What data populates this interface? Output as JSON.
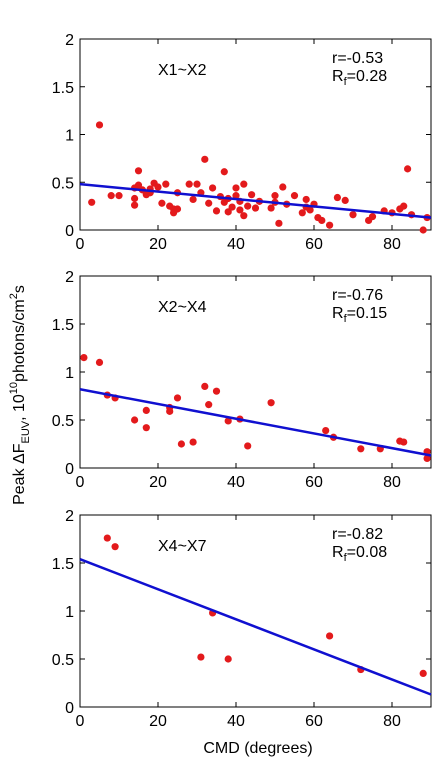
{
  "figure": {
    "ylabel_main": "Peak ",
    "ylabel_delta": "ΔF",
    "ylabel_sub": "EUV",
    "ylabel_mid": ", 10",
    "ylabel_sup1": "10",
    "ylabel_unit": "photons/cm",
    "ylabel_sup2": "2",
    "ylabel_end": "s",
    "xlabel": "CMD (degrees)"
  },
  "colors": {
    "points": "#e31a1c",
    "fit": "#1010d0",
    "axis": "#000000"
  },
  "chart_data": [
    {
      "type": "scatter",
      "label": "X1~X2",
      "r_text": "r=-0.53",
      "rf_prefix": "R",
      "rf_sub": "f",
      "rf_value": "=0.28",
      "xlim": [
        0,
        90
      ],
      "ylim": [
        0,
        2
      ],
      "xticks": [
        0,
        20,
        40,
        60,
        80
      ],
      "yticks": [
        0,
        0.5,
        1,
        1.5,
        2
      ],
      "ytick_labels": [
        "0",
        "0.5",
        "1",
        "1.5",
        "2"
      ],
      "xtick_labels": [
        "0",
        "20",
        "40",
        "60",
        "80"
      ],
      "show_xtick_labels": true,
      "fit": {
        "x": [
          0,
          90
        ],
        "y": [
          0.48,
          0.13
        ]
      },
      "points": [
        [
          3,
          0.29
        ],
        [
          5,
          1.1
        ],
        [
          8,
          0.36
        ],
        [
          10,
          0.36
        ],
        [
          14,
          0.33
        ],
        [
          14,
          0.26
        ],
        [
          14,
          0.44
        ],
        [
          15,
          0.47
        ],
        [
          15,
          0.62
        ],
        [
          16,
          0.42
        ],
        [
          17,
          0.37
        ],
        [
          18,
          0.39
        ],
        [
          18,
          0.43
        ],
        [
          19,
          0.49
        ],
        [
          20,
          0.45
        ],
        [
          21,
          0.28
        ],
        [
          22,
          0.48
        ],
        [
          23,
          0.25
        ],
        [
          24,
          0.22
        ],
        [
          24,
          0.18
        ],
        [
          25,
          0.22
        ],
        [
          25,
          0.39
        ],
        [
          28,
          0.48
        ],
        [
          29,
          0.32
        ],
        [
          30,
          0.48
        ],
        [
          31,
          0.39
        ],
        [
          32,
          0.74
        ],
        [
          33,
          0.28
        ],
        [
          34,
          0.44
        ],
        [
          35,
          0.2
        ],
        [
          36,
          0.35
        ],
        [
          37,
          0.61
        ],
        [
          37,
          0.29
        ],
        [
          38,
          0.33
        ],
        [
          38,
          0.19
        ],
        [
          39,
          0.24
        ],
        [
          40,
          0.44
        ],
        [
          40,
          0.36
        ],
        [
          41,
          0.3
        ],
        [
          41,
          0.21
        ],
        [
          42,
          0.48
        ],
        [
          42,
          0.15
        ],
        [
          43,
          0.25
        ],
        [
          44,
          0.37
        ],
        [
          45,
          0.23
        ],
        [
          46,
          0.3
        ],
        [
          49,
          0.23
        ],
        [
          50,
          0.29
        ],
        [
          50,
          0.36
        ],
        [
          51,
          0.07
        ],
        [
          52,
          0.45
        ],
        [
          53,
          0.27
        ],
        [
          55,
          0.36
        ],
        [
          57,
          0.18
        ],
        [
          58,
          0.32
        ],
        [
          58,
          0.24
        ],
        [
          59,
          0.21
        ],
        [
          60,
          0.27
        ],
        [
          61,
          0.13
        ],
        [
          62,
          0.1
        ],
        [
          64,
          0.05
        ],
        [
          66,
          0.34
        ],
        [
          68,
          0.31
        ],
        [
          70,
          0.16
        ],
        [
          74,
          0.1
        ],
        [
          75,
          0.14
        ],
        [
          78,
          0.2
        ],
        [
          80,
          0.18
        ],
        [
          82,
          0.22
        ],
        [
          83,
          0.25
        ],
        [
          84,
          0.64
        ],
        [
          85,
          0.16
        ],
        [
          88,
          0.0
        ],
        [
          89,
          0.13
        ]
      ]
    },
    {
      "type": "scatter",
      "label": "X2~X4",
      "r_text": "r=-0.76",
      "rf_prefix": "R",
      "rf_sub": "f",
      "rf_value": "=0.15",
      "xlim": [
        0,
        90
      ],
      "ylim": [
        0,
        2
      ],
      "xticks": [
        0,
        20,
        40,
        60,
        80
      ],
      "yticks": [
        0,
        0.5,
        1,
        1.5,
        2
      ],
      "ytick_labels": [
        "0",
        "0.5",
        "1",
        "1.5",
        "2"
      ],
      "xtick_labels": [
        "0",
        "20",
        "40",
        "60",
        "80"
      ],
      "show_xtick_labels": true,
      "fit": {
        "x": [
          0,
          90
        ],
        "y": [
          0.82,
          0.13
        ]
      },
      "points": [
        [
          1,
          1.15
        ],
        [
          5,
          1.1
        ],
        [
          7,
          0.76
        ],
        [
          9,
          0.73
        ],
        [
          14,
          0.5
        ],
        [
          17,
          0.6
        ],
        [
          17,
          0.42
        ],
        [
          23,
          0.59
        ],
        [
          23,
          0.63
        ],
        [
          25,
          0.73
        ],
        [
          26,
          0.25
        ],
        [
          29,
          0.27
        ],
        [
          32,
          0.85
        ],
        [
          33,
          0.66
        ],
        [
          35,
          0.8
        ],
        [
          38,
          0.49
        ],
        [
          41,
          0.51
        ],
        [
          43,
          0.23
        ],
        [
          49,
          0.68
        ],
        [
          63,
          0.39
        ],
        [
          65,
          0.32
        ],
        [
          72,
          0.2
        ],
        [
          77,
          0.2
        ],
        [
          82,
          0.28
        ],
        [
          83,
          0.27
        ],
        [
          89,
          0.17
        ],
        [
          89,
          0.1
        ]
      ]
    },
    {
      "type": "scatter",
      "label": "X4~X7",
      "r_text": "r=-0.82",
      "rf_prefix": "R",
      "rf_sub": "f",
      "rf_value": "=0.08",
      "xlim": [
        0,
        90
      ],
      "ylim": [
        0,
        2
      ],
      "xticks": [
        0,
        20,
        40,
        60,
        80
      ],
      "yticks": [
        0,
        0.5,
        1,
        1.5,
        2
      ],
      "ytick_labels": [
        "0",
        "0.5",
        "1",
        "1.5",
        "2"
      ],
      "xtick_labels": [
        "0",
        "20",
        "40",
        "60",
        "80"
      ],
      "show_xtick_labels": true,
      "fit": {
        "x": [
          0,
          90
        ],
        "y": [
          1.54,
          0.13
        ]
      },
      "points": [
        [
          7,
          1.76
        ],
        [
          9,
          1.67
        ],
        [
          31,
          0.52
        ],
        [
          34,
          0.98
        ],
        [
          38,
          0.5
        ],
        [
          64,
          0.74
        ],
        [
          72,
          0.39
        ],
        [
          88,
          0.35
        ]
      ]
    }
  ]
}
